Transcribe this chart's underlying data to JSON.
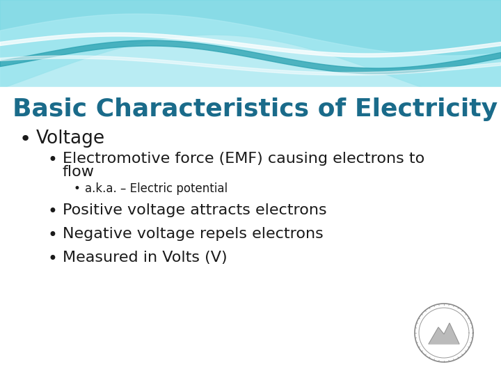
{
  "title": "Basic Characteristics of Electricity",
  "title_color": "#1a6b8a",
  "title_fontsize": 26,
  "bg_color": "#ffffff",
  "slide_bg": "#ffffff",
  "bullet1": "Voltage",
  "bullet1_fontsize": 19,
  "bullet2_line1": "Electromotive force (EMF) causing electrons to",
  "bullet2_line2": "flow",
  "bullet2_fontsize": 16,
  "bullet3": "a.k.a. – Electric potential",
  "bullet3_fontsize": 12,
  "bullet4": "Positive voltage attracts electrons",
  "bullet4_fontsize": 16,
  "bullet5": "Negative voltage repels electrons",
  "bullet5_fontsize": 16,
  "bullet6": "Measured in Volts (V)",
  "bullet6_fontsize": 16,
  "text_color": "#1a1a1a",
  "wave_bg_color": "#c8eef2",
  "wave_dark": "#3ab8c8",
  "wave_mid": "#7dd8e4",
  "wave_light": "#b0ecf4",
  "wave_stripe": "#28a0b0"
}
